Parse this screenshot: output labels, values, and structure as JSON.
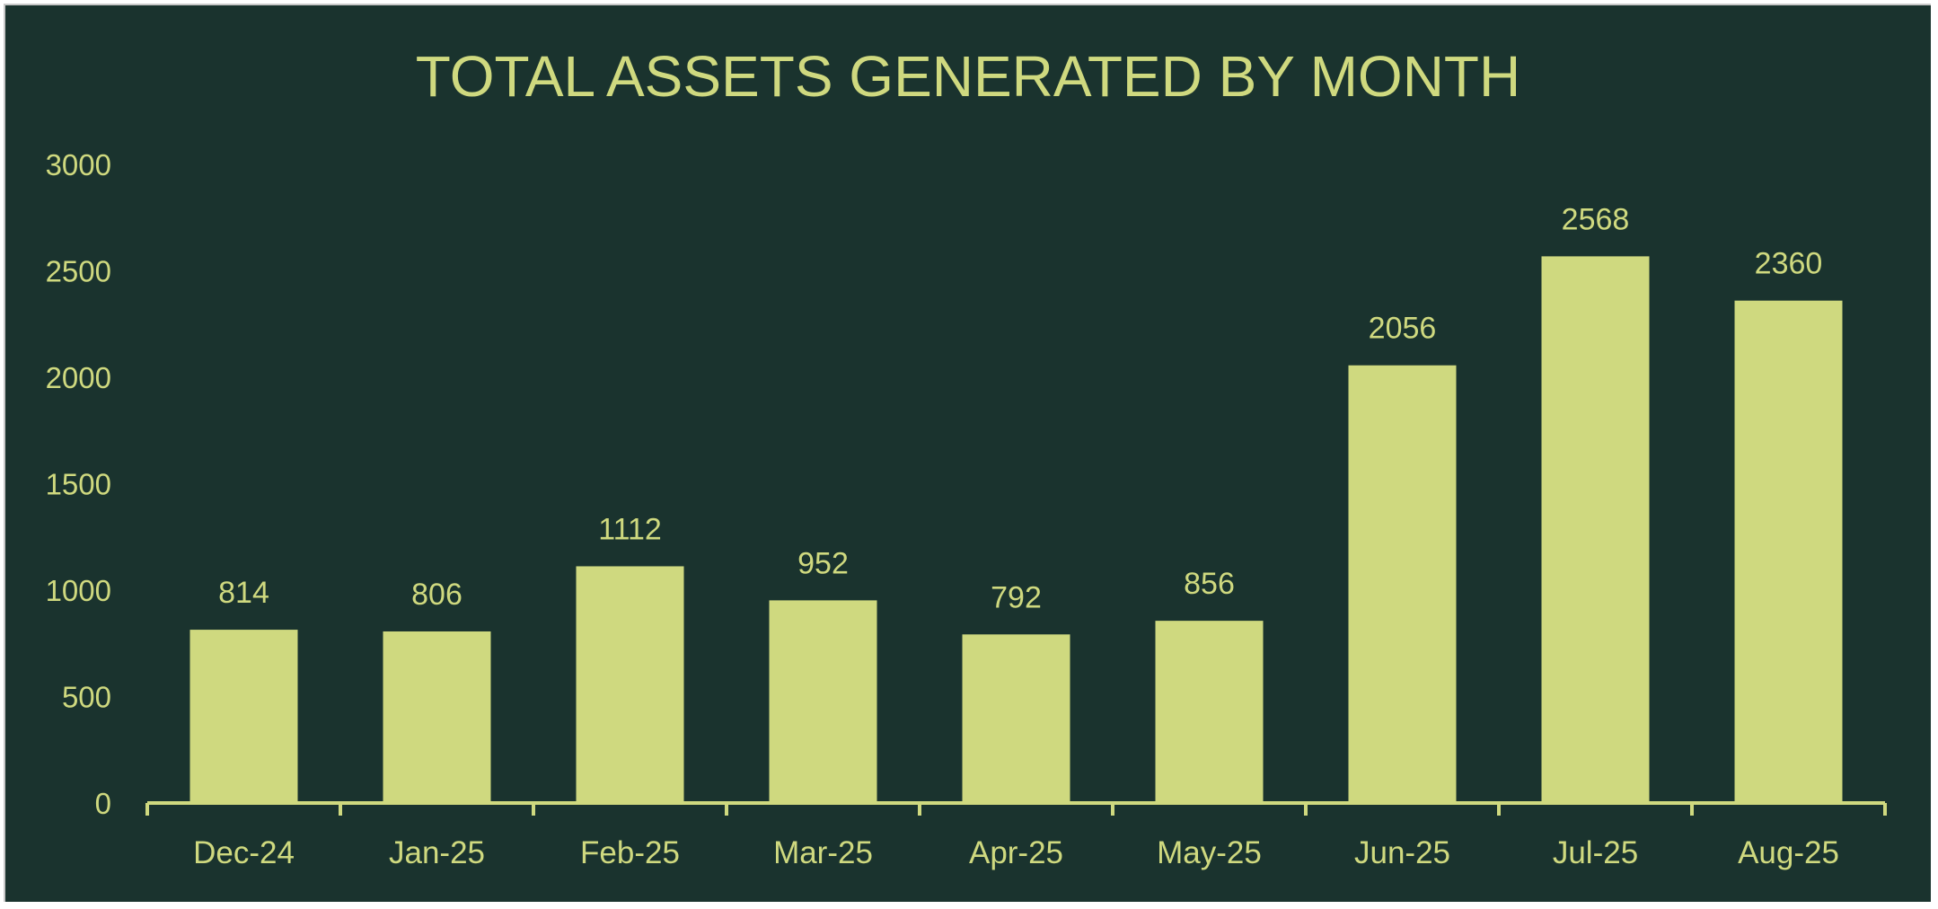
{
  "colors": {
    "background": "#1a332e",
    "bar": "#cfd97f",
    "text": "#cfd97f",
    "border": "#c8c8c8"
  },
  "chart_data": {
    "type": "bar",
    "title": "TOTAL ASSETS GENERATED BY MONTH",
    "categories": [
      "Dec-24",
      "Jan-25",
      "Feb-25",
      "Mar-25",
      "Apr-25",
      "May-25",
      "Jun-25",
      "Jul-25",
      "Aug-25"
    ],
    "values": [
      814,
      806,
      1112,
      952,
      792,
      856,
      2056,
      2568,
      2360
    ],
    "data_labels": [
      "814",
      "806",
      "1112",
      "952",
      "792",
      "856",
      "2056",
      "2568",
      "2360"
    ],
    "xlabel": "",
    "ylabel": "",
    "ylim": [
      0,
      3000
    ],
    "yticks": [
      "0",
      "500",
      "1000",
      "1500",
      "2000",
      "2500",
      "3000"
    ],
    "grid": false,
    "legend": "none"
  }
}
